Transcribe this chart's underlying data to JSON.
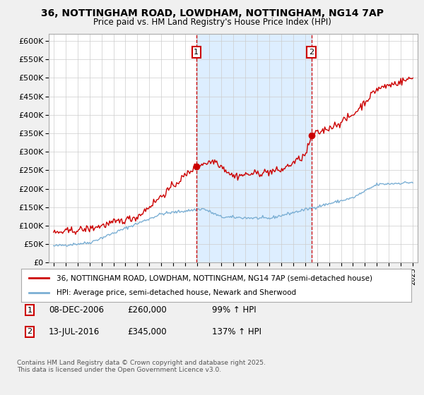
{
  "title1": "36, NOTTINGHAM ROAD, LOWDHAM, NOTTINGHAM, NG14 7AP",
  "title2": "Price paid vs. HM Land Registry's House Price Index (HPI)",
  "ylim": [
    0,
    620000
  ],
  "yticks": [
    0,
    50000,
    100000,
    150000,
    200000,
    250000,
    300000,
    350000,
    400000,
    450000,
    500000,
    550000,
    600000
  ],
  "xlim_start": 1994.6,
  "xlim_end": 2025.4,
  "sale1_x": 2006.92,
  "sale1_y": 260000,
  "sale1_label": "1",
  "sale1_date": "08-DEC-2006",
  "sale1_price": "£260,000",
  "sale1_pct": "99% ↑ HPI",
  "sale2_x": 2016.53,
  "sale2_y": 345000,
  "sale2_label": "2",
  "sale2_date": "13-JUL-2016",
  "sale2_price": "£345,000",
  "sale2_pct": "137% ↑ HPI",
  "red_color": "#cc0000",
  "blue_color": "#7bafd4",
  "shade_color": "#ddeeff",
  "bg_color": "#f0f0f0",
  "plot_bg": "#ffffff",
  "legend_line1": "36, NOTTINGHAM ROAD, LOWDHAM, NOTTINGHAM, NG14 7AP (semi-detached house)",
  "legend_line2": "HPI: Average price, semi-detached house, Newark and Sherwood",
  "footer": "Contains HM Land Registry data © Crown copyright and database right 2025.\nThis data is licensed under the Open Government Licence v3.0."
}
